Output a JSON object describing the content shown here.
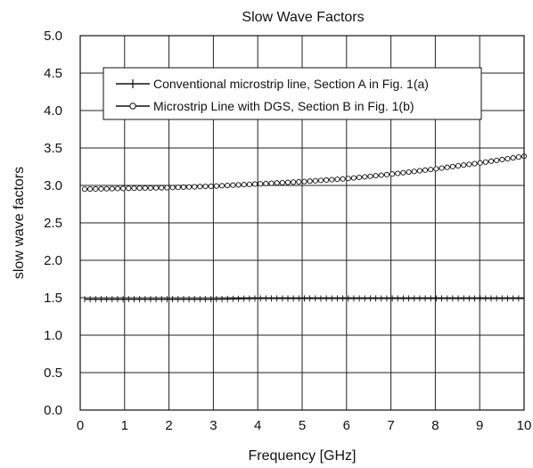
{
  "chart_data": {
    "type": "line",
    "title": "Slow Wave Factors",
    "xlabel": "Frequency [GHz]",
    "ylabel": "slow wave factors",
    "xlim": [
      0,
      10
    ],
    "ylim": [
      0,
      5
    ],
    "xticks": [
      "0",
      "1",
      "2",
      "3",
      "4",
      "5",
      "6",
      "7",
      "8",
      "9",
      "10"
    ],
    "yticks": [
      "0.0",
      "0.5",
      "1.0",
      "1.5",
      "2.0",
      "2.5",
      "3.0",
      "3.5",
      "4.0",
      "4.5",
      "5.0"
    ],
    "grid": true,
    "legend_position": "top-center",
    "series": [
      {
        "name": "Conventional microstrip line, Section A in Fig. 1(a)",
        "marker": "plus",
        "x": [
          0.1,
          1,
          2,
          3,
          4,
          5,
          6,
          7,
          8,
          9,
          10
        ],
        "y": [
          1.48,
          1.48,
          1.48,
          1.48,
          1.49,
          1.49,
          1.49,
          1.49,
          1.49,
          1.49,
          1.49
        ]
      },
      {
        "name": "Microstrip Line with DGS, Section B in Fig. 1(b)",
        "marker": "circle",
        "x": [
          0.1,
          1,
          2,
          3,
          4,
          5,
          6,
          7,
          8,
          9,
          10
        ],
        "y": [
          2.95,
          2.96,
          2.97,
          2.99,
          3.02,
          3.05,
          3.09,
          3.15,
          3.22,
          3.3,
          3.39
        ]
      }
    ]
  }
}
